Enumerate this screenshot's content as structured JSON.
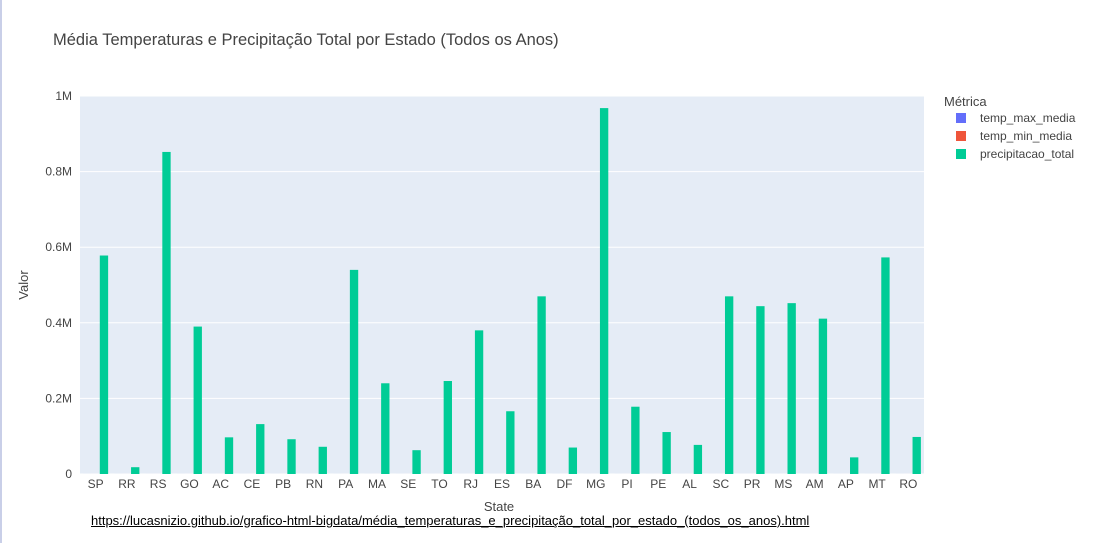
{
  "chart_data": {
    "type": "bar",
    "title": "Média Temperaturas e Precipitação Total por Estado (Todos os Anos)",
    "xlabel": "State",
    "ylabel": "Valor",
    "ylim": [
      0,
      1000000
    ],
    "yticks": [
      {
        "value": 0,
        "label": "0"
      },
      {
        "value": 200000,
        "label": "0.2M"
      },
      {
        "value": 400000,
        "label": "0.4M"
      },
      {
        "value": 600000,
        "label": "0.6M"
      },
      {
        "value": 800000,
        "label": "0.8M"
      },
      {
        "value": 1000000,
        "label": "1M"
      }
    ],
    "grid": true,
    "legend_title": "Métrica",
    "legend_position": "right",
    "categories": [
      "SP",
      "RR",
      "RS",
      "GO",
      "AC",
      "CE",
      "PB",
      "RN",
      "PA",
      "MA",
      "SE",
      "TO",
      "RJ",
      "ES",
      "BA",
      "DF",
      "MG",
      "PI",
      "PE",
      "AL",
      "SC",
      "PR",
      "MS",
      "AM",
      "AP",
      "MT",
      "RO"
    ],
    "series": [
      {
        "name": "temp_max_media",
        "color": "#636efa",
        "values": [
          25,
          27,
          23,
          27,
          27,
          28,
          28,
          28,
          28,
          28,
          27,
          28,
          25,
          25,
          27,
          27,
          26,
          28,
          28,
          28,
          23,
          23,
          27,
          28,
          28,
          29,
          28
        ]
      },
      {
        "name": "temp_min_media",
        "color": "#ef553b",
        "values": [
          18,
          22,
          14,
          18,
          22,
          23,
          22,
          23,
          23,
          22,
          22,
          22,
          19,
          19,
          21,
          17,
          17,
          22,
          22,
          22,
          15,
          15,
          18,
          23,
          23,
          19,
          21
        ]
      },
      {
        "name": "precipitacao_total",
        "color": "#00cc96",
        "values": [
          578000,
          18000,
          852000,
          390000,
          97000,
          132000,
          92000,
          72000,
          540000,
          240000,
          63000,
          246000,
          380000,
          166000,
          470000,
          70000,
          968000,
          178000,
          111000,
          77000,
          470000,
          444000,
          452000,
          411000,
          44000,
          573000,
          98000
        ]
      }
    ]
  },
  "page": {
    "url": "https://lucasnizio.github.io/grafico-html-bigdata/média_temperaturas_e_precipitação_total_por_estado_(todos_os_anos).html"
  }
}
